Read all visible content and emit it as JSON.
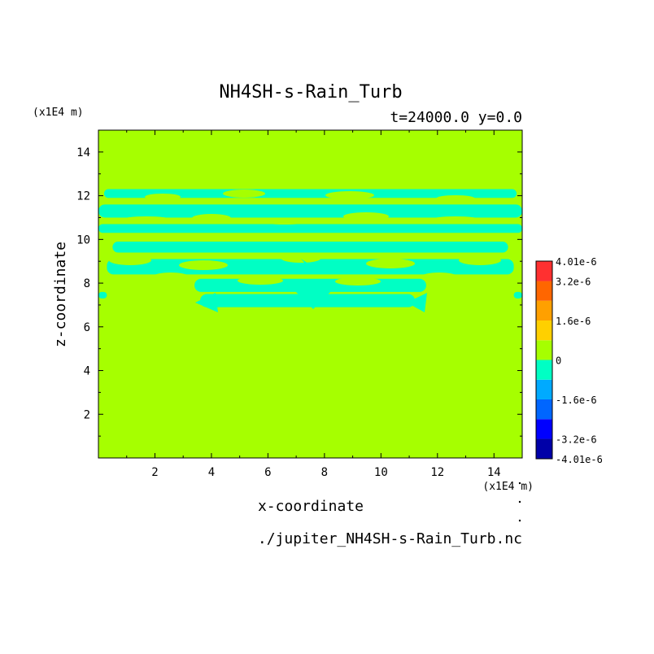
{
  "chart_data": {
    "type": "heatmap",
    "title": "NH4SH-s-Rain_Turb",
    "subtitle": "t=24000.0 y=0.0",
    "xlabel": "x-coordinate",
    "ylabel": "z-coordinate",
    "x_unit": "(x1E4 m)",
    "y_unit": "(x1E4 m)",
    "source": "./jupiter_NH4SH-s-Rain_Turb.nc",
    "xlim": [
      0,
      15
    ],
    "ylim": [
      0,
      15
    ],
    "x_ticks": [
      2,
      4,
      6,
      8,
      10,
      12,
      14
    ],
    "y_ticks": [
      2,
      4,
      6,
      8,
      10,
      12,
      14
    ],
    "field_background_color": "#a6ff00",
    "negative_region_color": "#00ffc4",
    "colorbar": {
      "levels": [
        {
          "from": -4.01e-06,
          "to": -3.2e-06,
          "color": "#0000a8"
        },
        {
          "from": -3.2e-06,
          "to": -2.4e-06,
          "color": "#0000ff"
        },
        {
          "from": -2.4e-06,
          "to": -1.6e-06,
          "color": "#0066ff"
        },
        {
          "from": -1.6e-06,
          "to": -8e-07,
          "color": "#00aaff"
        },
        {
          "from": -8e-07,
          "to": 0,
          "color": "#00ffc4"
        },
        {
          "from": 0,
          "to": 8e-07,
          "color": "#a6ff00"
        },
        {
          "from": 8e-07,
          "to": 1.6e-06,
          "color": "#ffd000"
        },
        {
          "from": 1.6e-06,
          "to": 2.4e-06,
          "color": "#ffa000"
        },
        {
          "from": 2.4e-06,
          "to": 3.2e-06,
          "color": "#ff6600"
        },
        {
          "from": 3.2e-06,
          "to": 4.01e-06,
          "color": "#ff3030"
        }
      ],
      "tick_labels": [
        {
          "value": 4.01e-06,
          "label": "4.01e-6"
        },
        {
          "value": 3.2e-06,
          "label": "3.2e-6"
        },
        {
          "value": 1.6e-06,
          "label": "1.6e-6"
        },
        {
          "value": 0,
          "label": "0"
        },
        {
          "value": -1.6e-06,
          "label": "-1.6e-6"
        },
        {
          "value": -3.2e-06,
          "label": "-3.2e-6"
        },
        {
          "value": -4.01e-06,
          "label": "-4.01e-6"
        }
      ]
    },
    "negative_bands": [
      {
        "x": [
          0.2,
          14.8
        ],
        "z": [
          11.9,
          12.3
        ]
      },
      {
        "x": [
          0.0,
          15.0
        ],
        "z": [
          11.0,
          11.6
        ]
      },
      {
        "x": [
          0.0,
          15.0
        ],
        "z": [
          10.3,
          10.7
        ]
      },
      {
        "x": [
          0.5,
          14.5
        ],
        "z": [
          9.4,
          9.9
        ]
      },
      {
        "x": [
          0.3,
          14.7
        ],
        "z": [
          8.4,
          9.1
        ]
      },
      {
        "x": [
          3.4,
          11.6
        ],
        "z": [
          7.6,
          8.2
        ]
      },
      {
        "x": [
          3.6,
          11.2
        ],
        "z": [
          6.9,
          7.5
        ]
      },
      {
        "x": [
          0.0,
          0.3
        ],
        "z": [
          7.3,
          7.6
        ]
      },
      {
        "x": [
          14.7,
          15.0
        ],
        "z": [
          7.3,
          7.6
        ]
      }
    ]
  }
}
